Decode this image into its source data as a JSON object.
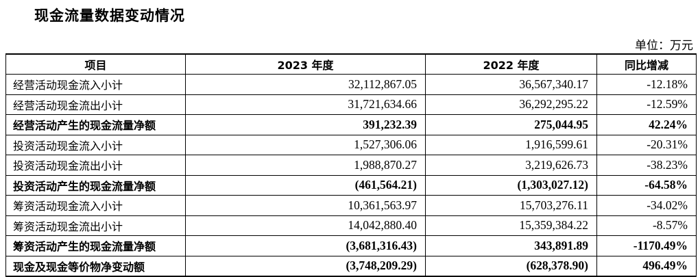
{
  "title": "现金流量数据变动情况",
  "unit": "单位：万元",
  "headers": [
    "项目",
    "2023 年度",
    "2022 年度",
    "同比增减"
  ],
  "rows": [
    {
      "item": "经营活动现金流入小计",
      "y2023": "32,112,867.05",
      "y2022": "36,567,340.17",
      "change": "-12.18%"
    },
    {
      "item": "经营活动现金流出小计",
      "y2023": "31,721,634.66",
      "y2022": "36,292,295.22",
      "change": "-12.59%"
    },
    {
      "item": "经营活动产生的现金流量净额",
      "y2023": "391,232.39",
      "y2022": "275,044.95",
      "change": "42.24%"
    },
    {
      "item": "投资活动现金流入小计",
      "y2023": "1,527,306.06",
      "y2022": "1,916,599.61",
      "change": "-20.31%"
    },
    {
      "item": "投资活动现金流出小计",
      "y2023": "1,988,870.27",
      "y2022": "3,219,626.73",
      "change": "-38.23%"
    },
    {
      "item": "投资活动产生的现金流量净额",
      "y2023": "(461,564.21)",
      "y2022": "(1,303,027.12)",
      "change": "-64.58%"
    },
    {
      "item": "筹资活动现金流入小计",
      "y2023": "10,361,563.97",
      "y2022": "15,703,276.11",
      "change": "-34.02%"
    },
    {
      "item": "筹资活动现金流出小计",
      "y2023": "14,042,880.40",
      "y2022": "15,359,384.22",
      "change": "-8.57%"
    },
    {
      "item": "筹资活动产生的现金流量净额",
      "y2023": "(3,681,316.43)",
      "y2022": "343,891.89",
      "change": "-1170.49%"
    },
    {
      "item": "现金及现金等价物净变动额",
      "y2023": "(3,748,209.29)",
      "y2022": "(628,378.90)",
      "change": "496.49%"
    }
  ]
}
